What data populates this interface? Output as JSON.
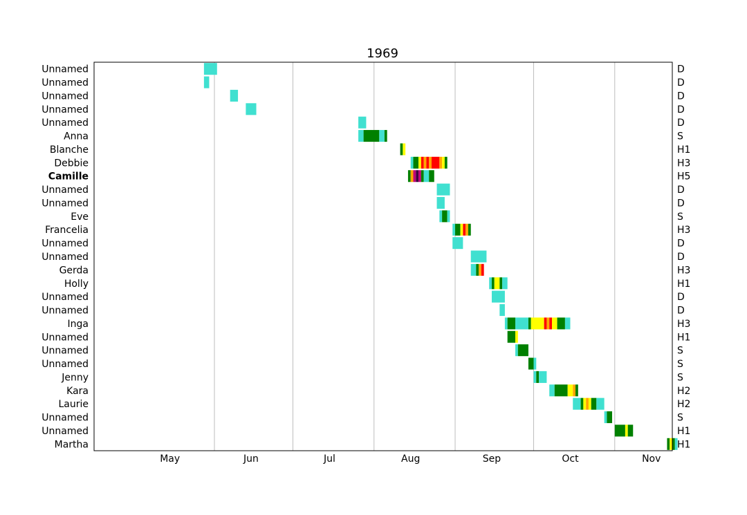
{
  "chart_data": {
    "type": "timeline",
    "title": "1969",
    "x_ticks": [
      "May",
      "Jun",
      "Jul",
      "Aug",
      "Sep",
      "Oct",
      "Nov"
    ],
    "x_range": [
      "1969-04-16",
      "1969-11-23"
    ],
    "grid": "vertical month boundaries",
    "colors": {
      "D": "#40e0d0",
      "S": "#008000",
      "H1": "#ffff00",
      "H2": "#ffa500",
      "H3": "#ff0000",
      "H4": "#c0007a",
      "H5": "#400040"
    },
    "storms": [
      {
        "name": "Unnamed",
        "category": "D",
        "bold": false,
        "segments": [
          [
            "1969-05-28",
            "1969-06-02",
            "D"
          ]
        ]
      },
      {
        "name": "Unnamed",
        "category": "D",
        "bold": false,
        "segments": [
          [
            "1969-05-28",
            "1969-05-30",
            "D"
          ]
        ]
      },
      {
        "name": "Unnamed",
        "category": "D",
        "bold": false,
        "segments": [
          [
            "1969-06-07",
            "1969-06-10",
            "D"
          ]
        ]
      },
      {
        "name": "Unnamed",
        "category": "D",
        "bold": false,
        "segments": [
          [
            "1969-06-13",
            "1969-06-17",
            "D"
          ]
        ]
      },
      {
        "name": "Unnamed",
        "category": "D",
        "bold": false,
        "segments": [
          [
            "1969-07-26",
            "1969-07-29",
            "D"
          ]
        ]
      },
      {
        "name": "Anna",
        "category": "S",
        "bold": false,
        "segments": [
          [
            "1969-07-26",
            "1969-07-28",
            "D"
          ],
          [
            "1969-07-28",
            "1969-08-03",
            "S"
          ],
          [
            "1969-08-03",
            "1969-08-05",
            "D"
          ],
          [
            "1969-08-05",
            "1969-08-06",
            "S"
          ]
        ]
      },
      {
        "name": "Blanche",
        "category": "H1",
        "bold": false,
        "segments": [
          [
            "1969-08-11",
            "1969-08-12",
            "S"
          ],
          [
            "1969-08-12",
            "1969-08-13",
            "H1"
          ]
        ]
      },
      {
        "name": "Debbie",
        "category": "H3",
        "bold": false,
        "segments": [
          [
            "1969-08-15",
            "1969-08-16",
            "D"
          ],
          [
            "1969-08-16",
            "1969-08-18",
            "S"
          ],
          [
            "1969-08-18",
            "1969-08-19",
            "H1"
          ],
          [
            "1969-08-19",
            "1969-08-20",
            "H3"
          ],
          [
            "1969-08-20",
            "1969-08-21",
            "H2"
          ],
          [
            "1969-08-21",
            "1969-08-22",
            "H3"
          ],
          [
            "1969-08-22",
            "1969-08-23",
            "H2"
          ],
          [
            "1969-08-23",
            "1969-08-26",
            "H3"
          ],
          [
            "1969-08-26",
            "1969-08-27",
            "H2"
          ],
          [
            "1969-08-27",
            "1969-08-28",
            "H1"
          ],
          [
            "1969-08-28",
            "1969-08-29",
            "S"
          ]
        ]
      },
      {
        "name": "Camille",
        "category": "H5",
        "bold": true,
        "segments": [
          [
            "1969-08-14",
            "1969-08-15",
            "S"
          ],
          [
            "1969-08-15",
            "1969-08-16",
            "H2"
          ],
          [
            "1969-08-16",
            "1969-08-17",
            "H4"
          ],
          [
            "1969-08-17",
            "1969-08-18",
            "H5"
          ],
          [
            "1969-08-18",
            "1969-08-19",
            "H4"
          ],
          [
            "1969-08-19",
            "1969-08-20",
            "S"
          ],
          [
            "1969-08-20",
            "1969-08-22",
            "D"
          ],
          [
            "1969-08-22",
            "1969-08-24",
            "S"
          ]
        ]
      },
      {
        "name": "Unnamed",
        "category": "D",
        "bold": false,
        "segments": [
          [
            "1969-08-25",
            "1969-08-30",
            "D"
          ]
        ]
      },
      {
        "name": "Unnamed",
        "category": "D",
        "bold": false,
        "segments": [
          [
            "1969-08-25",
            "1969-08-28",
            "D"
          ]
        ]
      },
      {
        "name": "Eve",
        "category": "S",
        "bold": false,
        "segments": [
          [
            "1969-08-26",
            "1969-08-27",
            "D"
          ],
          [
            "1969-08-27",
            "1969-08-29",
            "S"
          ],
          [
            "1969-08-29",
            "1969-08-30",
            "D"
          ]
        ]
      },
      {
        "name": "Francelia",
        "category": "H3",
        "bold": false,
        "segments": [
          [
            "1969-08-31",
            "1969-09-01",
            "D"
          ],
          [
            "1969-09-01",
            "1969-09-03",
            "S"
          ],
          [
            "1969-09-03",
            "1969-09-04",
            "H1"
          ],
          [
            "1969-09-04",
            "1969-09-05",
            "H3"
          ],
          [
            "1969-09-05",
            "1969-09-06",
            "H2"
          ],
          [
            "1969-09-06",
            "1969-09-07",
            "S"
          ]
        ]
      },
      {
        "name": "Unnamed",
        "category": "D",
        "bold": false,
        "segments": [
          [
            "1969-08-31",
            "1969-09-04",
            "D"
          ]
        ]
      },
      {
        "name": "Unnamed",
        "category": "D",
        "bold": false,
        "segments": [
          [
            "1969-09-07",
            "1969-09-13",
            "D"
          ]
        ]
      },
      {
        "name": "Gerda",
        "category": "H3",
        "bold": false,
        "segments": [
          [
            "1969-09-07",
            "1969-09-09",
            "D"
          ],
          [
            "1969-09-09",
            "1969-09-10",
            "S"
          ],
          [
            "1969-09-10",
            "1969-09-11",
            "H2"
          ],
          [
            "1969-09-11",
            "1969-09-12",
            "H3"
          ]
        ]
      },
      {
        "name": "Holly",
        "category": "H1",
        "bold": false,
        "segments": [
          [
            "1969-09-14",
            "1969-09-15",
            "D"
          ],
          [
            "1969-09-15",
            "1969-09-16",
            "S"
          ],
          [
            "1969-09-16",
            "1969-09-18",
            "H1"
          ],
          [
            "1969-09-18",
            "1969-09-19",
            "S"
          ],
          [
            "1969-09-19",
            "1969-09-21",
            "D"
          ]
        ]
      },
      {
        "name": "Unnamed",
        "category": "D",
        "bold": false,
        "segments": [
          [
            "1969-09-15",
            "1969-09-20",
            "D"
          ]
        ]
      },
      {
        "name": "Unnamed",
        "category": "D",
        "bold": false,
        "segments": [
          [
            "1969-09-18",
            "1969-09-20",
            "D"
          ]
        ]
      },
      {
        "name": "Inga",
        "category": "H3",
        "bold": false,
        "segments": [
          [
            "1969-09-20",
            "1969-09-21",
            "D"
          ],
          [
            "1969-09-21",
            "1969-09-24",
            "S"
          ],
          [
            "1969-09-24",
            "1969-09-29",
            "D"
          ],
          [
            "1969-09-29",
            "1969-09-30",
            "S"
          ],
          [
            "1969-09-30",
            "1969-10-05",
            "H1"
          ],
          [
            "1969-10-05",
            "1969-10-06",
            "H3"
          ],
          [
            "1969-10-06",
            "1969-10-07",
            "H2"
          ],
          [
            "1969-10-07",
            "1969-10-08",
            "H3"
          ],
          [
            "1969-10-08",
            "1969-10-10",
            "H1"
          ],
          [
            "1969-10-10",
            "1969-10-13",
            "S"
          ],
          [
            "1969-10-13",
            "1969-10-15",
            "D"
          ]
        ]
      },
      {
        "name": "Unnamed",
        "category": "H1",
        "bold": false,
        "segments": [
          [
            "1969-09-21",
            "1969-09-24",
            "S"
          ],
          [
            "1969-09-24",
            "1969-09-25",
            "H1"
          ]
        ]
      },
      {
        "name": "Unnamed",
        "category": "S",
        "bold": false,
        "segments": [
          [
            "1969-09-24",
            "1969-09-25",
            "D"
          ],
          [
            "1969-09-25",
            "1969-09-29",
            "S"
          ]
        ]
      },
      {
        "name": "Unnamed",
        "category": "S",
        "bold": false,
        "segments": [
          [
            "1969-09-29",
            "1969-10-01",
            "S"
          ],
          [
            "1969-10-01",
            "1969-10-02",
            "D"
          ]
        ]
      },
      {
        "name": "Jenny",
        "category": "S",
        "bold": false,
        "segments": [
          [
            "1969-10-01",
            "1969-10-02",
            "D"
          ],
          [
            "1969-10-02",
            "1969-10-03",
            "S"
          ],
          [
            "1969-10-03",
            "1969-10-06",
            "D"
          ]
        ]
      },
      {
        "name": "Kara",
        "category": "H2",
        "bold": false,
        "segments": [
          [
            "1969-10-07",
            "1969-10-09",
            "D"
          ],
          [
            "1969-10-09",
            "1969-10-14",
            "S"
          ],
          [
            "1969-10-14",
            "1969-10-16",
            "H1"
          ],
          [
            "1969-10-16",
            "1969-10-17",
            "H2"
          ],
          [
            "1969-10-17",
            "1969-10-18",
            "S"
          ]
        ]
      },
      {
        "name": "Laurie",
        "category": "H2",
        "bold": false,
        "segments": [
          [
            "1969-10-16",
            "1969-10-19",
            "D"
          ],
          [
            "1969-10-19",
            "1969-10-20",
            "S"
          ],
          [
            "1969-10-20",
            "1969-10-21",
            "H1"
          ],
          [
            "1969-10-21",
            "1969-10-22",
            "H2"
          ],
          [
            "1969-10-22",
            "1969-10-23",
            "H1"
          ],
          [
            "1969-10-23",
            "1969-10-25",
            "S"
          ],
          [
            "1969-10-25",
            "1969-10-28",
            "D"
          ]
        ]
      },
      {
        "name": "Unnamed",
        "category": "S",
        "bold": false,
        "segments": [
          [
            "1969-10-28",
            "1969-10-29",
            "D"
          ],
          [
            "1969-10-29",
            "1969-10-31",
            "S"
          ]
        ]
      },
      {
        "name": "Unnamed",
        "category": "H1",
        "bold": false,
        "segments": [
          [
            "1969-11-01",
            "1969-11-05",
            "S"
          ],
          [
            "1969-11-05",
            "1969-11-06",
            "H1"
          ],
          [
            "1969-11-06",
            "1969-11-08",
            "S"
          ]
        ]
      },
      {
        "name": "Martha",
        "category": "H1",
        "bold": false,
        "segments": [
          [
            "1969-11-21",
            "1969-11-22",
            "S"
          ],
          [
            "1969-11-22",
            "1969-11-23",
            "H1"
          ],
          [
            "1969-11-23",
            "1969-11-24",
            "S"
          ],
          [
            "1969-11-24",
            "1969-11-25",
            "D"
          ]
        ]
      }
    ]
  }
}
